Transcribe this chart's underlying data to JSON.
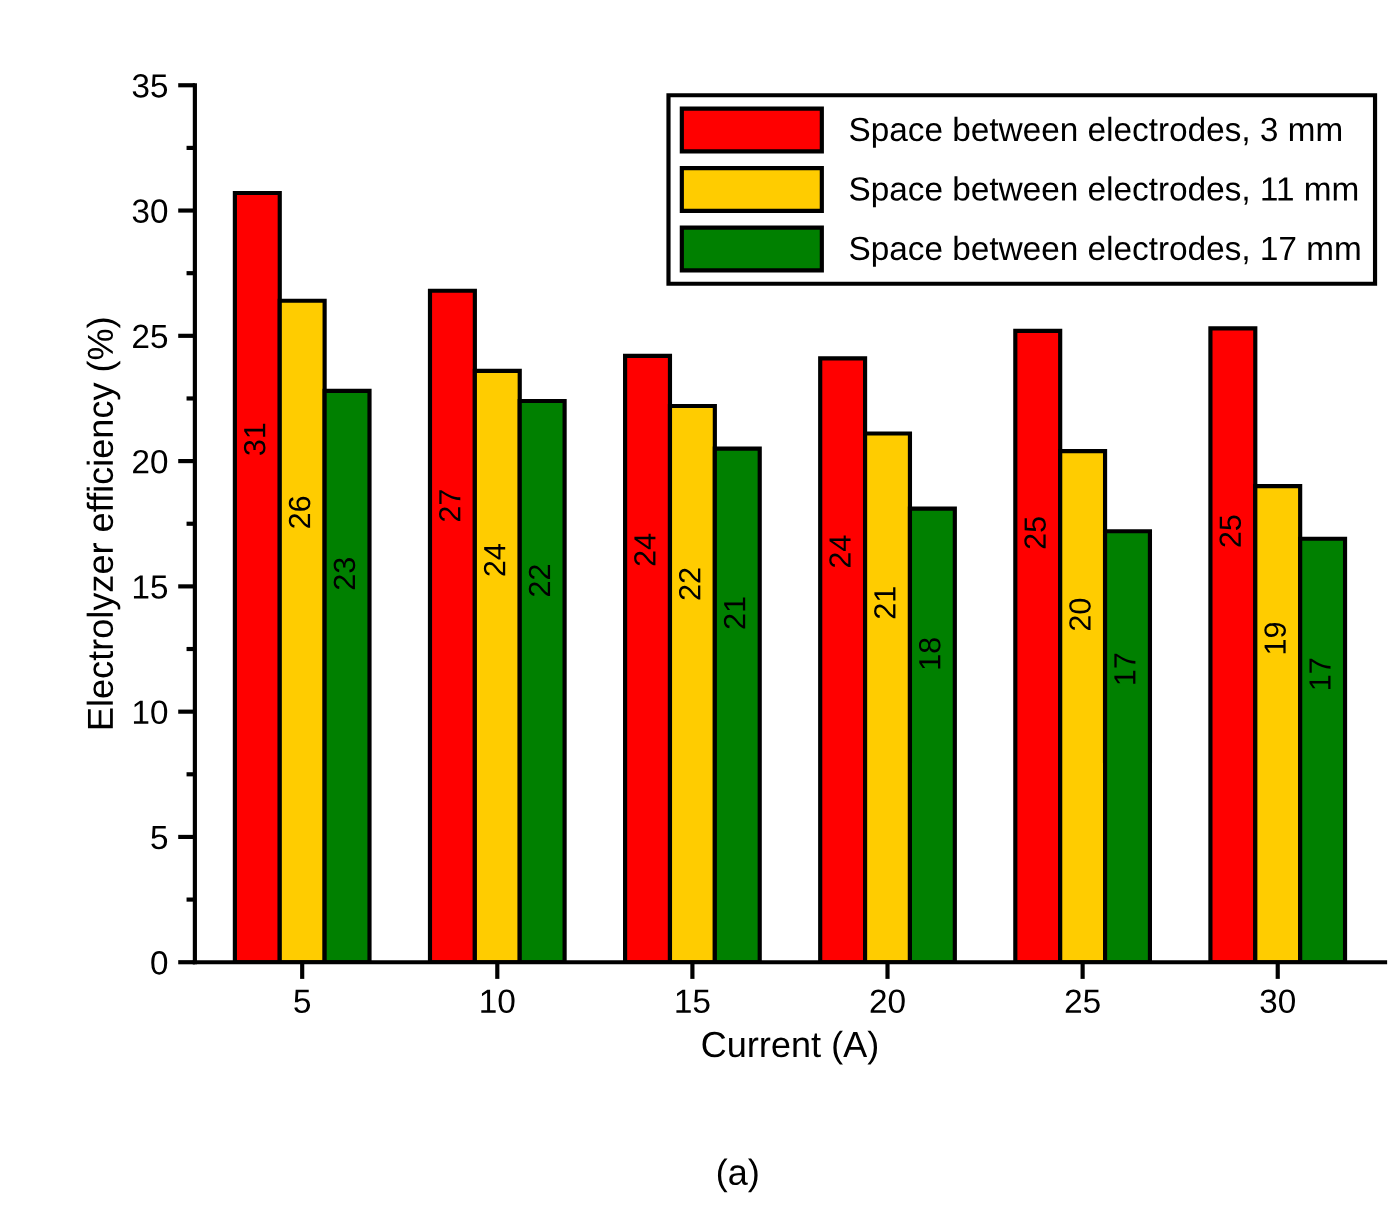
{
  "chart_data": {
    "type": "bar",
    "xlabel": "Current (A)",
    "ylabel": "Electrolyzer efficiency (%)",
    "categories": [
      "5",
      "10",
      "15",
      "20",
      "25",
      "30"
    ],
    "series": [
      {
        "name": "Space between electrodes, 3 mm",
        "color": "#ff0000",
        "values": [
          30.7,
          26.8,
          24.2,
          24.1,
          25.2,
          25.3
        ],
        "value_labels": [
          "31",
          "27",
          "24",
          "24",
          "25",
          "25"
        ]
      },
      {
        "name": "Space between electrodes, 11 mm",
        "color": "#ffcc00",
        "values": [
          26.4,
          23.6,
          22.2,
          21.1,
          20.4,
          19.0
        ],
        "value_labels": [
          "26",
          "24",
          "22",
          "21",
          "20",
          "19"
        ]
      },
      {
        "name": "Space between electrodes, 17 mm",
        "color": "#008000",
        "values": [
          22.8,
          22.4,
          20.5,
          18.1,
          17.2,
          16.9
        ],
        "value_labels": [
          "23",
          "22",
          "21",
          "18",
          "17",
          "17"
        ]
      }
    ],
    "ylim": [
      0,
      35
    ],
    "yticks": [
      0,
      {
        "value": 2.5,
        "label": null
      },
      5,
      {
        "value": 7.5,
        "label": null
      },
      10,
      {
        "value": 12.5,
        "label": null
      },
      15,
      {
        "value": 17.5,
        "label": null
      },
      20,
      {
        "value": 22.5,
        "label": null
      },
      25,
      {
        "value": 27.5,
        "label": null
      },
      30,
      {
        "value": 32.5,
        "label": null
      },
      35
    ],
    "legend": "top right",
    "grid": false,
    "annotations": [
      "(a)"
    ]
  }
}
